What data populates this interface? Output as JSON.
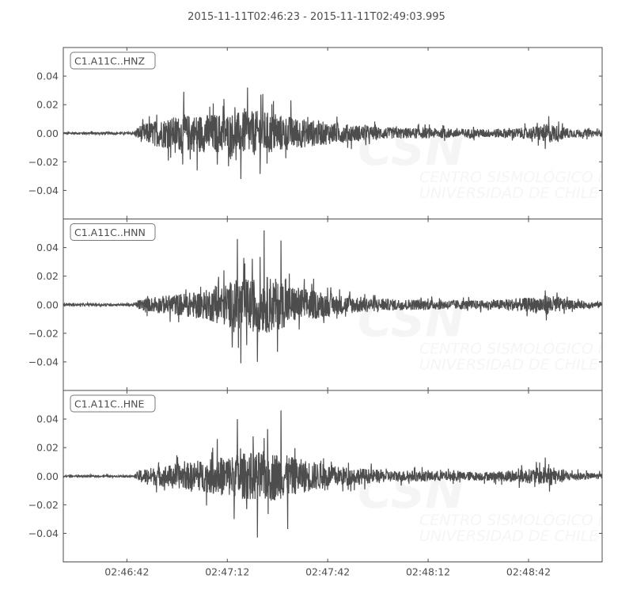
{
  "chart_data": {
    "type": "line",
    "title": "2015-11-11T02:46:23  -  2015-11-11T02:49:03.995",
    "xlim": [
      "02:46:23",
      "02:49:03.995"
    ],
    "x_ticks": [
      "02:46:42",
      "02:47:12",
      "02:47:42",
      "02:48:12",
      "02:48:42"
    ],
    "ylim": [
      -0.06,
      0.06
    ],
    "y_ticks": [
      "0.04",
      "0.02",
      "0.00",
      "−0.02",
      "−0.04"
    ],
    "y_tick_values": [
      0.04,
      0.02,
      0,
      -0.02,
      -0.04
    ],
    "grid": false,
    "line_color": "#4d4d4d",
    "watermark": {
      "logo": "CSN",
      "line1": "CENTRO SISMOLÓGICO NACIONAL",
      "line2": "UNIVERSIDAD DE CHILE"
    },
    "series": [
      {
        "name": "C1.A11C..HNZ",
        "envelope": [
          [
            "02:46:23",
            0.0008
          ],
          [
            "02:46:44",
            0.0008
          ],
          [
            "02:46:46",
            0.006
          ],
          [
            "02:46:52",
            0.01
          ],
          [
            "02:47:00",
            0.013
          ],
          [
            "02:47:12",
            0.014
          ],
          [
            "02:47:22",
            0.016
          ],
          [
            "02:47:32",
            0.011
          ],
          [
            "02:47:45",
            0.007
          ],
          [
            "02:48:00",
            0.004
          ],
          [
            "02:48:30",
            0.003
          ],
          [
            "02:48:42",
            0.004
          ],
          [
            "02:48:48",
            0.007
          ],
          [
            "02:48:55",
            0.003
          ],
          [
            "02:49:04",
            0.002
          ]
        ],
        "peaks": [
          [
            "02:46:59",
            0.029
          ],
          [
            "02:47:03",
            -0.026
          ],
          [
            "02:47:18",
            0.032
          ],
          [
            "02:47:16",
            -0.032
          ],
          [
            "02:47:22",
            0.027
          ],
          [
            "02:47:11",
            0.024
          ],
          [
            "02:47:31",
            0.023
          ],
          [
            "02:48:48",
            0.012
          ],
          [
            "02:48:47",
            -0.011
          ]
        ]
      },
      {
        "name": "C1.A11C..HNN",
        "envelope": [
          [
            "02:46:23",
            0.0008
          ],
          [
            "02:46:44",
            0.0008
          ],
          [
            "02:46:46",
            0.004
          ],
          [
            "02:46:55",
            0.007
          ],
          [
            "02:47:05",
            0.01
          ],
          [
            "02:47:15",
            0.018
          ],
          [
            "02:47:25",
            0.02
          ],
          [
            "02:47:32",
            0.013
          ],
          [
            "02:47:45",
            0.007
          ],
          [
            "02:48:00",
            0.004
          ],
          [
            "02:48:30",
            0.003
          ],
          [
            "02:48:42",
            0.005
          ],
          [
            "02:48:48",
            0.007
          ],
          [
            "02:48:55",
            0.003
          ],
          [
            "02:49:04",
            0.002
          ]
        ],
        "peaks": [
          [
            "02:47:15",
            0.046
          ],
          [
            "02:47:16",
            -0.041
          ],
          [
            "02:47:23",
            0.052
          ],
          [
            "02:47:21",
            -0.04
          ],
          [
            "02:47:28",
            0.045
          ],
          [
            "02:47:27",
            -0.033
          ],
          [
            "02:47:11",
            0.024
          ],
          [
            "02:47:35",
            0.018
          ],
          [
            "02:48:47",
            0.01
          ]
        ]
      },
      {
        "name": "C1.A11C..HNE",
        "envelope": [
          [
            "02:46:23",
            0.0006
          ],
          [
            "02:46:44",
            0.0006
          ],
          [
            "02:46:46",
            0.005
          ],
          [
            "02:46:55",
            0.008
          ],
          [
            "02:47:05",
            0.011
          ],
          [
            "02:47:15",
            0.016
          ],
          [
            "02:47:25",
            0.018
          ],
          [
            "02:47:32",
            0.013
          ],
          [
            "02:47:45",
            0.007
          ],
          [
            "02:48:00",
            0.004
          ],
          [
            "02:48:30",
            0.003
          ],
          [
            "02:48:42",
            0.005
          ],
          [
            "02:48:48",
            0.007
          ],
          [
            "02:48:55",
            0.003
          ],
          [
            "02:49:04",
            0.002
          ]
        ],
        "peaks": [
          [
            "02:47:15",
            0.04
          ],
          [
            "02:47:14",
            -0.03
          ],
          [
            "02:47:28",
            0.046
          ],
          [
            "02:47:21",
            -0.043
          ],
          [
            "02:47:24",
            0.033
          ],
          [
            "02:47:30",
            -0.037
          ],
          [
            "02:47:09",
            0.026
          ],
          [
            "02:48:47",
            0.013
          ]
        ]
      }
    ]
  }
}
